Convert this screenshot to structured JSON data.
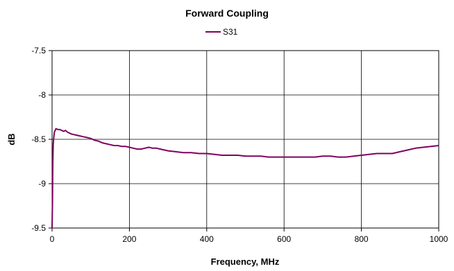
{
  "chart_data": {
    "type": "line",
    "title": "Forward Coupling",
    "xlabel": "Frequency, MHz",
    "ylabel": "dB",
    "xlim": [
      0,
      1000
    ],
    "ylim": [
      -9.5,
      -7.5
    ],
    "xticks": [
      0,
      200,
      400,
      600,
      800,
      1000
    ],
    "yticks": [
      -7.5,
      -8,
      -8.5,
      -9,
      -9.5
    ],
    "xtick_labels": [
      "0",
      "200",
      "400",
      "600",
      "800",
      "1000"
    ],
    "ytick_labels": [
      "-7.5",
      "-8",
      "-8.5",
      "-9",
      "-9.5"
    ],
    "grid": true,
    "legend_position": "top-center",
    "series": [
      {
        "name": "S31",
        "color": "#800060",
        "x": [
          0,
          1,
          2,
          3,
          4,
          6,
          8,
          10,
          15,
          20,
          25,
          30,
          35,
          40,
          45,
          50,
          60,
          70,
          80,
          90,
          100,
          110,
          120,
          130,
          140,
          150,
          160,
          170,
          180,
          190,
          200,
          210,
          220,
          230,
          240,
          250,
          260,
          270,
          280,
          290,
          300,
          320,
          340,
          360,
          380,
          400,
          420,
          440,
          460,
          480,
          500,
          520,
          540,
          560,
          580,
          600,
          620,
          640,
          660,
          680,
          700,
          720,
          740,
          760,
          780,
          800,
          820,
          840,
          860,
          880,
          900,
          920,
          940,
          960,
          980,
          1000
        ],
        "y": [
          -9.5,
          -9.2,
          -8.75,
          -8.55,
          -8.5,
          -8.42,
          -8.4,
          -8.38,
          -8.39,
          -8.39,
          -8.4,
          -8.41,
          -8.4,
          -8.42,
          -8.43,
          -8.44,
          -8.45,
          -8.46,
          -8.47,
          -8.48,
          -8.49,
          -8.51,
          -8.52,
          -8.54,
          -8.55,
          -8.56,
          -8.57,
          -8.57,
          -8.58,
          -8.58,
          -8.59,
          -8.6,
          -8.61,
          -8.61,
          -8.6,
          -8.59,
          -8.6,
          -8.6,
          -8.61,
          -8.62,
          -8.63,
          -8.64,
          -8.65,
          -8.65,
          -8.66,
          -8.66,
          -8.67,
          -8.68,
          -8.68,
          -8.68,
          -8.69,
          -8.69,
          -8.69,
          -8.7,
          -8.7,
          -8.7,
          -8.7,
          -8.7,
          -8.7,
          -8.7,
          -8.69,
          -8.69,
          -8.7,
          -8.7,
          -8.69,
          -8.68,
          -8.67,
          -8.66,
          -8.66,
          -8.66,
          -8.64,
          -8.62,
          -8.6,
          -8.59,
          -8.58,
          -8.57
        ]
      }
    ]
  }
}
